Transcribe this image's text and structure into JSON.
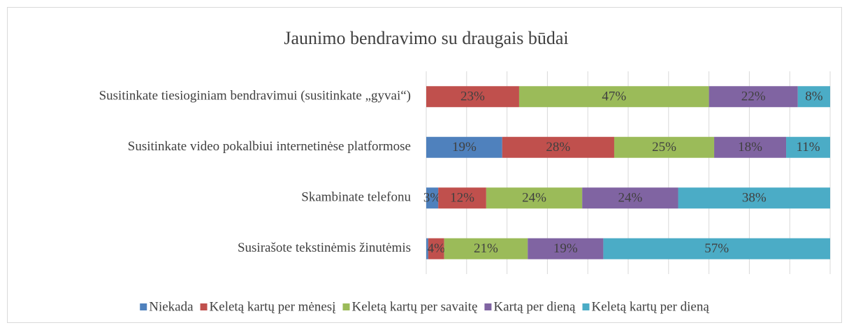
{
  "chart_data": {
    "type": "bar",
    "orientation": "horizontal",
    "stacked": "percent",
    "title": "Jaunimo bendravimo su draugais būdai",
    "categories": [
      "Susitinkate tiesioginiam bendravimui (susitinkate „gyvai“)",
      "Susitinkate video pokalbiui internetinėse platformose",
      "Skambinate telefonu",
      "Susirašote tekstinėmis žinutėmis"
    ],
    "series": [
      {
        "name": "Niekada",
        "color": "#4f81bd",
        "values": [
          0,
          19,
          3,
          0.5
        ],
        "value_labels": [
          null,
          "19%",
          "3%",
          null
        ]
      },
      {
        "name": "Keletą kartų per mėnesį",
        "color": "#c0504d",
        "values": [
          23,
          28,
          12,
          4
        ],
        "value_labels": [
          "23%",
          "28%",
          "12%",
          "4%"
        ]
      },
      {
        "name": "Keletą kartų per savaitę",
        "color": "#9bbb59",
        "values": [
          47,
          25,
          24,
          21
        ],
        "value_labels": [
          "47%",
          "25%",
          "24%",
          "21%"
        ]
      },
      {
        "name": "Kartą per dieną",
        "color": "#8064a2",
        "values": [
          22,
          18,
          24,
          19
        ],
        "value_labels": [
          "22%",
          "18%",
          "24%",
          "19%"
        ]
      },
      {
        "name": "Keletą kartų per dieną",
        "color": "#4bacc6",
        "values": [
          8,
          11,
          38,
          57
        ],
        "value_labels": [
          "8%",
          "11%",
          "38%",
          "57%"
        ]
      }
    ],
    "xlim": [
      0,
      100
    ],
    "xticks": [
      0,
      10,
      20,
      30,
      40,
      50,
      60,
      70,
      80,
      90,
      100
    ],
    "grid": true,
    "legend": "bottom"
  }
}
